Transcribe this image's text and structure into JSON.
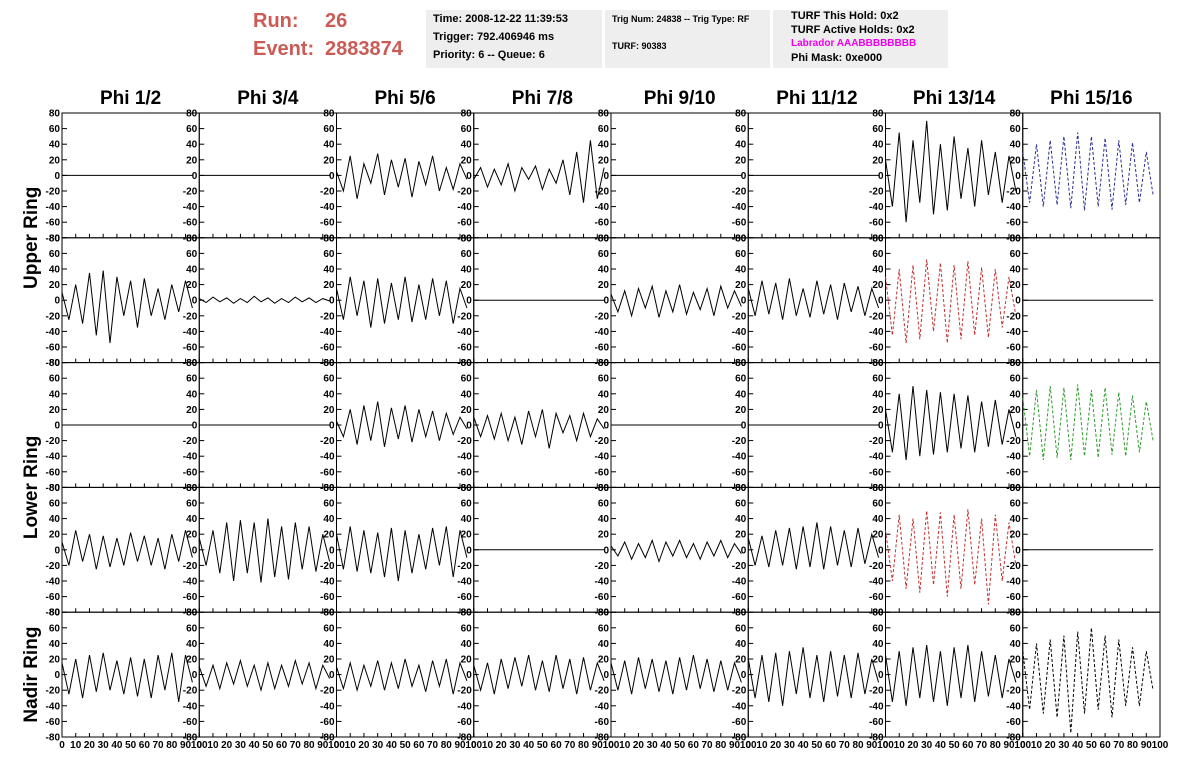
{
  "header": {
    "run_label": "Run:",
    "run": "26",
    "event_label": "Event:",
    "event": "2883874",
    "time": "Time: 2008-12-22 11:39:53",
    "trigger": "Trigger: 792.406946 ms",
    "priority": "Priority: 6 -- Queue: 6",
    "trig": "Trig Num: 24838 -- Trig Type: RF",
    "turf": "TURF: 90383",
    "hold": "TURF This Hold: 0x2",
    "active": "TURF Active Holds: 0x2",
    "labrador": "Labrador AAABBBBBBBB",
    "phimask": "Phi Mask: 0xe000"
  },
  "columns": [
    "Phi 1/2",
    "Phi 3/4",
    "Phi 5/6",
    "Phi 7/8",
    "Phi 9/10",
    "Phi 11/12",
    "Phi 13/14",
    "Phi 15/16"
  ],
  "rows": [
    "Upper Ring",
    "Lower Ring",
    "Nadir Ring"
  ],
  "chart_data": {
    "type": "line",
    "xlim": [
      0,
      100
    ],
    "xticks": [
      0,
      10,
      20,
      30,
      40,
      50,
      60,
      70,
      80,
      90,
      100
    ],
    "ylim": [
      -80,
      80
    ],
    "yticks": [
      -80,
      -60,
      -40,
      -20,
      0,
      20,
      40,
      60,
      80
    ],
    "x": [
      0,
      5,
      10,
      15,
      20,
      25,
      30,
      35,
      40,
      45,
      50,
      55,
      60,
      65,
      70,
      75,
      80,
      85,
      90,
      95
    ],
    "panels": [
      {
        "color": "#000000",
        "dashed": false,
        "values": [
          0,
          0,
          0,
          0,
          0,
          0,
          0,
          0,
          0,
          0,
          0,
          0,
          0,
          0,
          0,
          0,
          0,
          0,
          0,
          0
        ]
      },
      {
        "color": "#000000",
        "dashed": false,
        "values": [
          0,
          0,
          0,
          0,
          0,
          0,
          0,
          0,
          0,
          0,
          0,
          0,
          0,
          0,
          0,
          0,
          0,
          0,
          0,
          0
        ]
      },
      {
        "color": "#000000",
        "dashed": false,
        "values": [
          5,
          -20,
          25,
          -30,
          15,
          -10,
          28,
          -25,
          20,
          -15,
          22,
          -28,
          18,
          -12,
          25,
          -20,
          10,
          -18,
          15,
          -5
        ]
      },
      {
        "color": "#000000",
        "dashed": false,
        "values": [
          -5,
          10,
          -15,
          8,
          -12,
          15,
          -20,
          10,
          -5,
          12,
          -18,
          8,
          -10,
          20,
          -25,
          30,
          -35,
          45,
          -30,
          10
        ]
      },
      {
        "color": "#000000",
        "dashed": false,
        "values": [
          0,
          0,
          0,
          0,
          0,
          0,
          0,
          0,
          0,
          0,
          0,
          0,
          0,
          0,
          0,
          0,
          0,
          0,
          0,
          0
        ]
      },
      {
        "color": "#000000",
        "dashed": false,
        "values": [
          0,
          0,
          0,
          0,
          0,
          0,
          0,
          0,
          0,
          0,
          0,
          0,
          0,
          0,
          0,
          0,
          0,
          0,
          0,
          0
        ]
      },
      {
        "color": "#000000",
        "dashed": false,
        "values": [
          20,
          -40,
          55,
          -60,
          45,
          -35,
          70,
          -50,
          40,
          -45,
          50,
          -30,
          35,
          -40,
          45,
          -25,
          30,
          -35,
          25,
          -20
        ]
      },
      {
        "color": "#2b2f8f",
        "dashed": true,
        "values": [
          30,
          -35,
          40,
          -40,
          45,
          -38,
          50,
          -42,
          55,
          -45,
          50,
          -40,
          48,
          -44,
          45,
          -38,
          42,
          -35,
          30,
          -25
        ]
      },
      {
        "color": "#000000",
        "dashed": false,
        "values": [
          10,
          -25,
          20,
          -30,
          35,
          -45,
          38,
          -55,
          30,
          -20,
          25,
          -35,
          28,
          -20,
          15,
          -25,
          20,
          -15,
          25,
          -10
        ]
      },
      {
        "color": "#000000",
        "dashed": false,
        "values": [
          2,
          -3,
          4,
          -2,
          3,
          -4,
          2,
          -3,
          5,
          -2,
          3,
          -4,
          2,
          -3,
          4,
          -2,
          3,
          -3,
          2,
          -1
        ]
      },
      {
        "color": "#000000",
        "dashed": false,
        "values": [
          15,
          -25,
          30,
          -20,
          25,
          -35,
          28,
          -30,
          22,
          -25,
          30,
          -28,
          20,
          -25,
          28,
          -20,
          25,
          -30,
          15,
          -10
        ]
      },
      {
        "color": "#000000",
        "dashed": false,
        "values": [
          0,
          0,
          0,
          0,
          0,
          0,
          0,
          0,
          0,
          0,
          0,
          0,
          0,
          0,
          0,
          0,
          0,
          0,
          0,
          0
        ]
      },
      {
        "color": "#000000",
        "dashed": false,
        "values": [
          8,
          -15,
          12,
          -20,
          15,
          -10,
          18,
          -22,
          12,
          -15,
          20,
          -18,
          10,
          -12,
          15,
          -20,
          18,
          -10,
          12,
          -8
        ]
      },
      {
        "color": "#000000",
        "dashed": false,
        "values": [
          15,
          -20,
          25,
          -18,
          22,
          -25,
          28,
          -20,
          15,
          -22,
          25,
          -18,
          20,
          -25,
          22,
          -15,
          18,
          -20,
          15,
          -10
        ]
      },
      {
        "color": "#c03030",
        "dashed": true,
        "values": [
          30,
          -45,
          40,
          -55,
          45,
          -50,
          52,
          -40,
          48,
          -55,
          45,
          -50,
          50,
          -45,
          42,
          -48,
          40,
          -35,
          30,
          -20
        ]
      },
      {
        "color": "#000000",
        "dashed": false,
        "values": [
          0,
          0,
          0,
          0,
          0,
          0,
          0,
          0,
          0,
          0,
          0,
          0,
          0,
          0,
          0,
          0,
          0,
          0,
          0,
          0
        ]
      },
      {
        "color": "#000000",
        "dashed": false,
        "values": [
          0,
          0,
          0,
          0,
          0,
          0,
          0,
          0,
          0,
          0,
          0,
          0,
          0,
          0,
          0,
          0,
          0,
          0,
          0,
          0
        ]
      },
      {
        "color": "#000000",
        "dashed": false,
        "values": [
          0,
          0,
          0,
          0,
          0,
          0,
          0,
          0,
          0,
          0,
          0,
          0,
          0,
          0,
          0,
          0,
          0,
          0,
          0,
          0
        ]
      },
      {
        "color": "#000000",
        "dashed": false,
        "values": [
          5,
          -15,
          20,
          -25,
          25,
          -20,
          30,
          -28,
          22,
          -18,
          25,
          -22,
          20,
          -15,
          18,
          -20,
          15,
          -12,
          10,
          -5
        ]
      },
      {
        "color": "#000000",
        "dashed": false,
        "values": [
          10,
          -15,
          12,
          -18,
          15,
          -20,
          10,
          -25,
          18,
          -15,
          20,
          -30,
          15,
          -10,
          12,
          -20,
          15,
          -15,
          8,
          -5
        ]
      },
      {
        "color": "#000000",
        "dashed": false,
        "values": [
          0,
          0,
          0,
          0,
          0,
          0,
          0,
          0,
          0,
          0,
          0,
          0,
          0,
          0,
          0,
          0,
          0,
          0,
          0,
          0
        ]
      },
      {
        "color": "#000000",
        "dashed": false,
        "values": [
          0,
          0,
          0,
          0,
          0,
          0,
          0,
          0,
          0,
          0,
          0,
          0,
          0,
          0,
          0,
          0,
          0,
          0,
          0,
          0
        ]
      },
      {
        "color": "#000000",
        "dashed": false,
        "values": [
          20,
          -35,
          40,
          -45,
          50,
          -40,
          45,
          -38,
          42,
          -35,
          40,
          -30,
          38,
          -35,
          30,
          -28,
          32,
          -25,
          20,
          -15
        ]
      },
      {
        "color": "#2e9a2e",
        "dashed": true,
        "values": [
          35,
          -40,
          45,
          -45,
          50,
          -42,
          48,
          -45,
          52,
          -40,
          45,
          -42,
          48,
          -38,
          42,
          -40,
          38,
          -35,
          30,
          -20
        ]
      },
      {
        "color": "#000000",
        "dashed": false,
        "values": [
          10,
          -20,
          25,
          -15,
          20,
          -25,
          18,
          -22,
          15,
          -20,
          22,
          -15,
          18,
          -20,
          15,
          -25,
          20,
          -15,
          25,
          -10
        ]
      },
      {
        "color": "#000000",
        "dashed": false,
        "values": [
          15,
          -20,
          25,
          -30,
          35,
          -40,
          38,
          -30,
          35,
          -42,
          40,
          -35,
          30,
          -38,
          35,
          -25,
          30,
          -28,
          20,
          -15
        ]
      },
      {
        "color": "#000000",
        "dashed": false,
        "values": [
          20,
          -25,
          30,
          -28,
          25,
          -30,
          22,
          -35,
          28,
          -40,
          25,
          -30,
          20,
          -25,
          28,
          -20,
          30,
          -35,
          25,
          -10
        ]
      },
      {
        "color": "#000000",
        "dashed": false,
        "values": [
          0,
          0,
          0,
          0,
          0,
          0,
          0,
          0,
          0,
          0,
          0,
          0,
          0,
          0,
          0,
          0,
          0,
          0,
          0,
          0
        ]
      },
      {
        "color": "#000000",
        "dashed": false,
        "values": [
          5,
          -8,
          10,
          -12,
          8,
          -10,
          12,
          -15,
          10,
          -8,
          12,
          -10,
          8,
          -12,
          10,
          -8,
          12,
          -10,
          8,
          -5
        ]
      },
      {
        "color": "#000000",
        "dashed": false,
        "values": [
          15,
          -20,
          18,
          -22,
          25,
          -20,
          28,
          -25,
          30,
          -22,
          35,
          -25,
          30,
          -20,
          25,
          -22,
          28,
          -18,
          20,
          -10
        ]
      },
      {
        "color": "#c03030",
        "dashed": true,
        "values": [
          25,
          -40,
          45,
          -50,
          40,
          -55,
          50,
          -45,
          48,
          -60,
          45,
          -50,
          52,
          -45,
          40,
          -70,
          45,
          -40,
          35,
          -20
        ]
      },
      {
        "color": "#000000",
        "dashed": false,
        "values": [
          0,
          0,
          0,
          0,
          0,
          0,
          0,
          0,
          0,
          0,
          0,
          0,
          0,
          0,
          0,
          0,
          0,
          0,
          0,
          0
        ]
      },
      {
        "color": "#000000",
        "dashed": false,
        "values": [
          15,
          -25,
          20,
          -30,
          25,
          -22,
          28,
          -20,
          18,
          -25,
          22,
          -28,
          20,
          -30,
          25,
          -20,
          28,
          -35,
          25,
          -10
        ]
      },
      {
        "color": "#000000",
        "dashed": false,
        "values": [
          10,
          -15,
          12,
          -18,
          15,
          -12,
          18,
          -15,
          12,
          -20,
          15,
          -18,
          12,
          -15,
          18,
          -12,
          15,
          -18,
          12,
          -5
        ]
      },
      {
        "color": "#000000",
        "dashed": false,
        "values": [
          10,
          -18,
          15,
          -20,
          12,
          -15,
          18,
          -20,
          15,
          -18,
          20,
          -15,
          12,
          -22,
          18,
          -15,
          20,
          -25,
          15,
          -8
        ]
      },
      {
        "color": "#000000",
        "dashed": false,
        "values": [
          12,
          -20,
          15,
          -25,
          20,
          -18,
          22,
          -15,
          25,
          -20,
          18,
          -22,
          25,
          -18,
          20,
          -25,
          22,
          -20,
          15,
          -8
        ]
      },
      {
        "color": "#000000",
        "dashed": false,
        "values": [
          15,
          -20,
          18,
          -25,
          22,
          -18,
          20,
          -22,
          18,
          -25,
          22,
          -20,
          25,
          -18,
          20,
          -22,
          18,
          -20,
          15,
          -10
        ]
      },
      {
        "color": "#000000",
        "dashed": false,
        "values": [
          20,
          -30,
          25,
          -35,
          28,
          -40,
          30,
          -25,
          35,
          -30,
          25,
          -35,
          30,
          -28,
          25,
          -30,
          28,
          -25,
          20,
          -10
        ]
      },
      {
        "color": "#000000",
        "dashed": false,
        "values": [
          25,
          -35,
          30,
          -40,
          35,
          -30,
          38,
          -35,
          30,
          -40,
          35,
          -30,
          38,
          -35,
          30,
          -28,
          25,
          -30,
          20,
          -10
        ]
      },
      {
        "color": "#000000",
        "dashed": true,
        "values": [
          30,
          -45,
          40,
          -50,
          45,
          -55,
          50,
          -75,
          55,
          -50,
          60,
          -45,
          50,
          -55,
          45,
          -40,
          35,
          -40,
          30,
          -20
        ]
      }
    ]
  }
}
